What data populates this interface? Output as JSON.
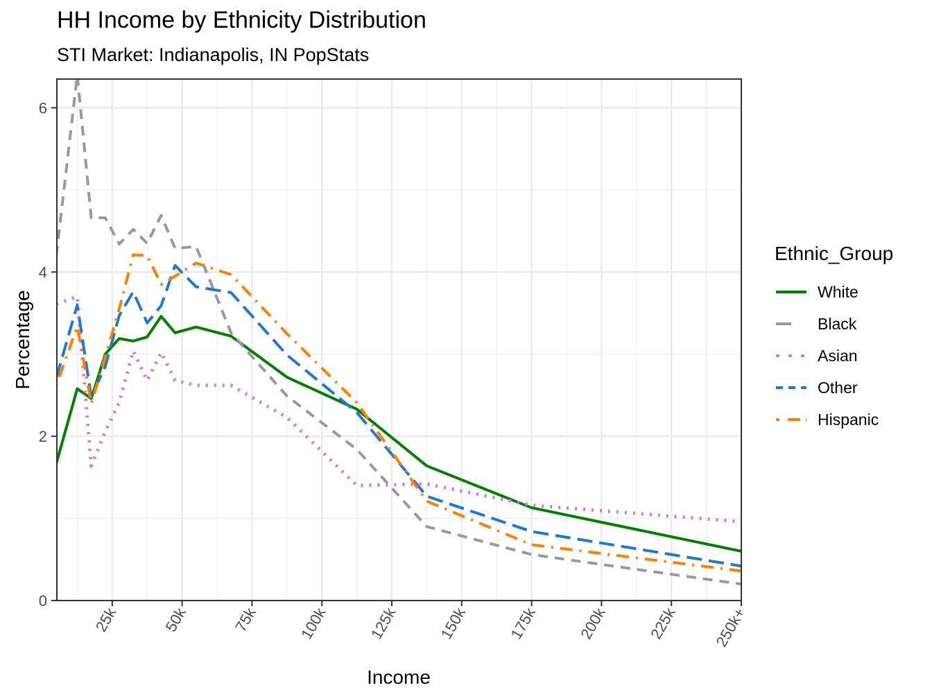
{
  "chart_data": {
    "type": "line",
    "title": "HH Income by Ethnicity Distribution",
    "subtitle": "STI Market: Indianapolis, IN PopStats",
    "xlabel": "Income",
    "ylabel": "Percentage",
    "x_units": "income ($k)",
    "xlim": [
      5.2,
      250
    ],
    "ylim": [
      0,
      6.35
    ],
    "x_ticks": [
      {
        "value": 25,
        "label": "25k"
      },
      {
        "value": 50,
        "label": "50k"
      },
      {
        "value": 75,
        "label": "75k"
      },
      {
        "value": 100,
        "label": "100k"
      },
      {
        "value": 125,
        "label": "125k"
      },
      {
        "value": 150,
        "label": "150k"
      },
      {
        "value": 175,
        "label": "175k"
      },
      {
        "value": 200,
        "label": "200k"
      },
      {
        "value": 225,
        "label": "225k"
      },
      {
        "value": 250,
        "label": "250k+"
      }
    ],
    "y_ticks": [
      {
        "value": 0,
        "label": "0"
      },
      {
        "value": 2,
        "label": "2"
      },
      {
        "value": 4,
        "label": "4"
      },
      {
        "value": 6,
        "label": "6"
      }
    ],
    "grid": true,
    "legend": {
      "title": "Ethnic_Group",
      "position": "right"
    },
    "x": [
      5,
      12.5,
      17.5,
      22.5,
      27.5,
      32.5,
      37.5,
      42.5,
      47.5,
      55,
      67.5,
      87.5,
      112.5,
      137.5,
      175,
      250
    ],
    "series": [
      {
        "name": "White",
        "color": "#008000",
        "dash": "solid",
        "values": [
          1.67,
          2.58,
          2.46,
          3.0,
          3.19,
          3.16,
          3.21,
          3.46,
          3.26,
          3.33,
          3.22,
          2.72,
          2.33,
          1.64,
          1.13,
          0.6
        ]
      },
      {
        "name": "Black",
        "color": "#999999",
        "dash": "dashed",
        "values": [
          4.2,
          6.4,
          4.66,
          4.66,
          4.34,
          4.52,
          4.35,
          4.69,
          4.29,
          4.31,
          3.26,
          2.49,
          1.84,
          0.9,
          0.56,
          0.2
        ]
      },
      {
        "name": "Asian",
        "color": "#CC79F0",
        "dash": "dotted",
        "values": [
          3.61,
          3.7,
          1.64,
          2.06,
          2.41,
          3.04,
          2.68,
          3.02,
          2.68,
          2.62,
          2.62,
          2.23,
          1.4,
          1.42,
          1.16,
          0.96
        ]
      },
      {
        "name": "Other",
        "color": "#1F78D1",
        "dash": "longdash",
        "values": [
          2.71,
          3.6,
          2.48,
          2.85,
          3.47,
          3.76,
          3.38,
          3.59,
          4.08,
          3.82,
          3.75,
          2.99,
          2.29,
          1.27,
          0.84,
          0.42
        ]
      },
      {
        "name": "Hispanic",
        "color": "#FF7F00",
        "dash": "dotdash",
        "values": [
          2.62,
          3.34,
          2.4,
          2.97,
          3.55,
          4.21,
          4.2,
          3.85,
          3.95,
          4.11,
          3.97,
          3.25,
          2.41,
          1.21,
          0.68,
          0.36
        ]
      }
    ]
  }
}
